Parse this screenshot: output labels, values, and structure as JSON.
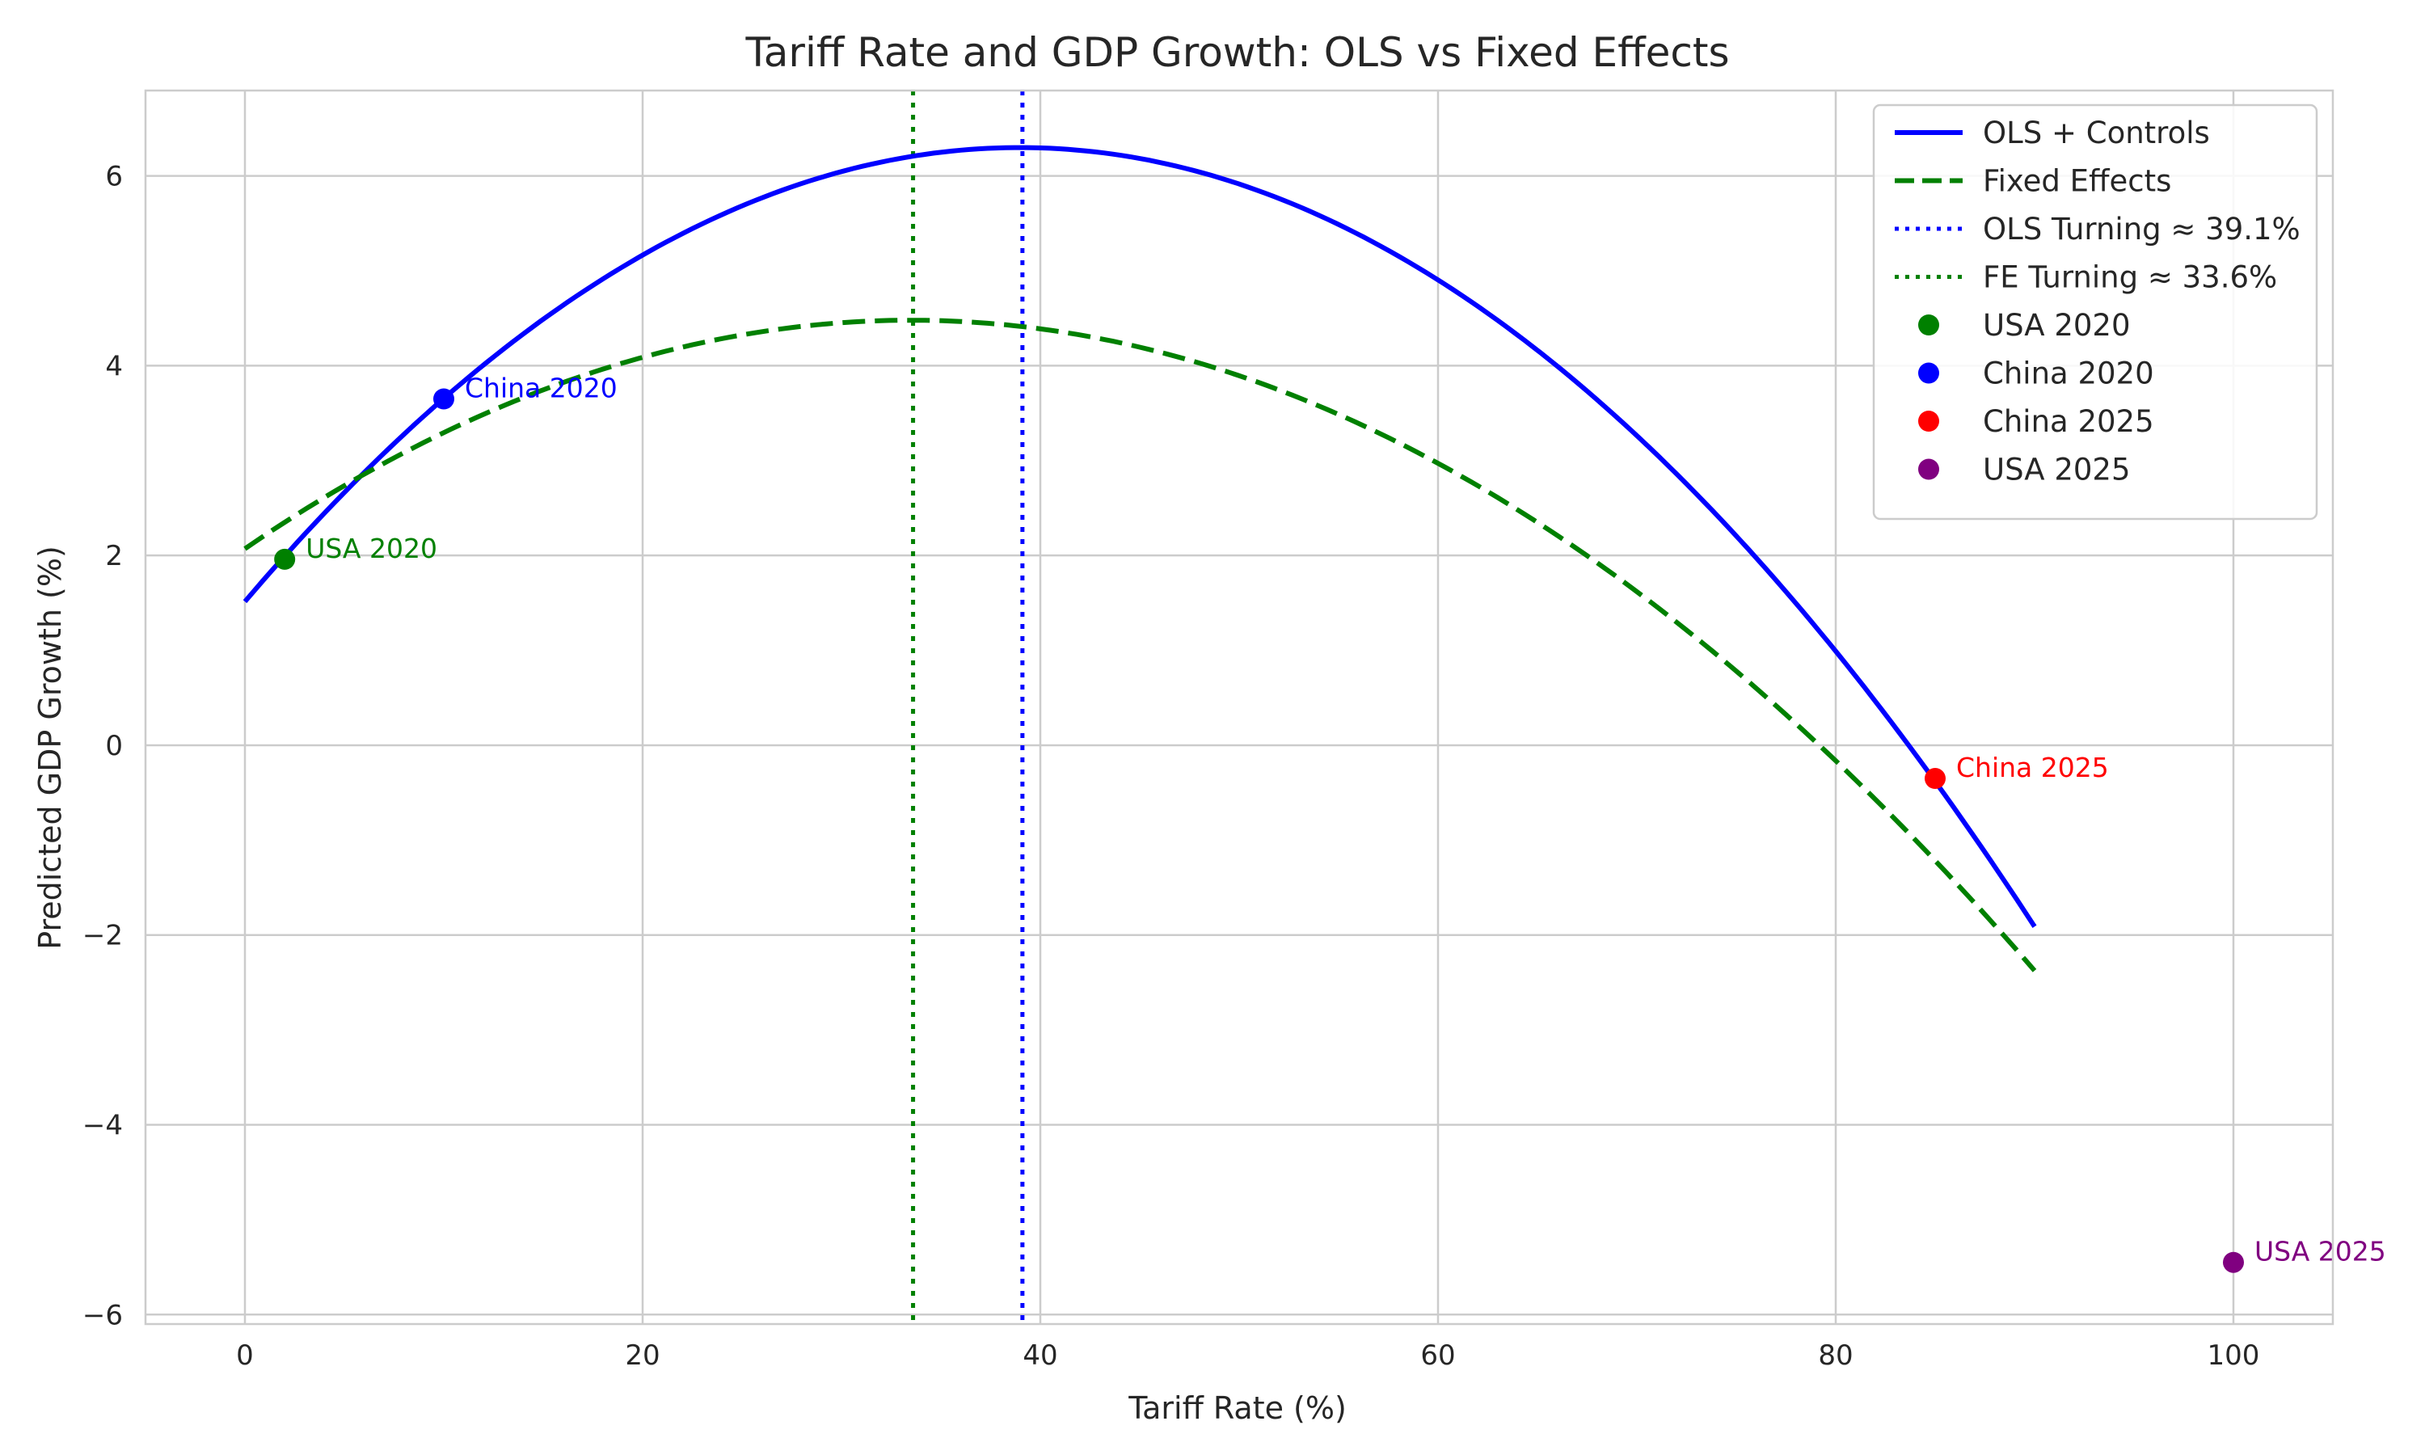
{
  "chart_data": {
    "type": "line",
    "title": "Tariff Rate and GDP Growth: OLS vs Fixed Effects",
    "xlabel": "Tariff Rate (%)",
    "ylabel": "Predicted GDP Growth (%)",
    "xlim": [
      -5,
      105
    ],
    "ylim": [
      -6.1,
      6.9
    ],
    "xticks": [
      0,
      20,
      40,
      60,
      80,
      100
    ],
    "xtick_labels": [
      "0",
      "20",
      "40",
      "60",
      "80",
      "100"
    ],
    "yticks": [
      -6,
      -4,
      -2,
      0,
      2,
      4,
      6
    ],
    "ytick_labels": [
      "−6",
      "−4",
      "−2",
      "0",
      "2",
      "4",
      "6"
    ],
    "grid": true,
    "legend_position": "top-right",
    "series": [
      {
        "name": "OLS + Controls",
        "style": "solid",
        "color": "#0000ff",
        "x": [
          0,
          10,
          20,
          30,
          39.1,
          50,
          60,
          70,
          80,
          85,
          90
        ],
        "y": [
          1.48,
          3.65,
          5.2,
          6.1,
          6.33,
          5.85,
          4.9,
          3.2,
          1.0,
          -0.35,
          -1.9
        ]
      },
      {
        "name": "Fixed Effects",
        "style": "dashed",
        "color": "#008000",
        "x": [
          0,
          10,
          20,
          30,
          33.6,
          40,
          50,
          60,
          70,
          80,
          90
        ],
        "y": [
          2.07,
          3.3,
          4.08,
          4.45,
          4.47,
          4.4,
          3.9,
          3.0,
          1.6,
          -0.2,
          -2.35
        ]
      }
    ],
    "vlines": [
      {
        "name": "OLS Turning ≈ 39.1%",
        "x": 39.1,
        "style": "dotted",
        "color": "#0000ff"
      },
      {
        "name": "FE Turning ≈ 33.6%",
        "x": 33.6,
        "style": "dotted",
        "color": "#008000"
      }
    ],
    "points": [
      {
        "name": "USA 2020",
        "label": "USA 2020",
        "x": 2,
        "y": 1.96,
        "color": "#008000"
      },
      {
        "name": "China 2020",
        "label": "China 2020",
        "x": 10,
        "y": 3.65,
        "color": "#0000ff"
      },
      {
        "name": "China 2025",
        "label": "China 2025",
        "x": 85,
        "y": -0.35,
        "color": "#ff0000"
      },
      {
        "name": "USA 2025",
        "label": "USA 2025",
        "x": 100,
        "y": -5.45,
        "color": "#800080"
      }
    ]
  }
}
